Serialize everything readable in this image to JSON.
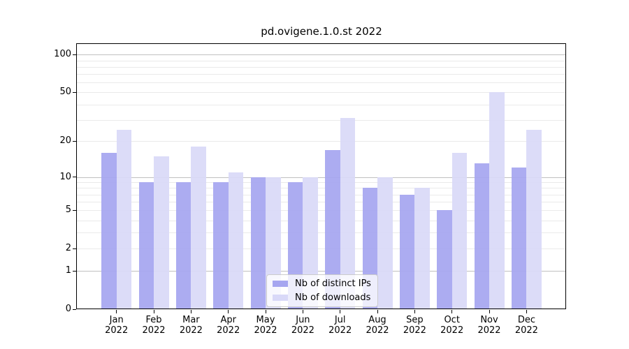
{
  "chart_data": {
    "type": "bar",
    "title": "pd.ovigene.1.0.st 2022",
    "x_months": [
      "Jan",
      "Feb",
      "Mar",
      "Apr",
      "May",
      "Jun",
      "Jul",
      "Aug",
      "Sep",
      "Oct",
      "Nov",
      "Dec"
    ],
    "x_year": "2022",
    "categories": [
      "Jan 2022",
      "Feb 2022",
      "Mar 2022",
      "Apr 2022",
      "May 2022",
      "Jun 2022",
      "Jul 2022",
      "Aug 2022",
      "Sep 2022",
      "Oct 2022",
      "Nov 2022",
      "Dec 2022"
    ],
    "series": [
      {
        "name": "Nb of distinct IPs",
        "color": "#a6a6f0",
        "values": [
          16,
          9,
          9,
          9,
          10,
          9,
          17,
          8,
          7,
          5,
          13,
          12
        ]
      },
      {
        "name": "Nb of downloads",
        "color": "#d9d9f8",
        "values": [
          25,
          15,
          18,
          11,
          10,
          10,
          31,
          10,
          8,
          16,
          50,
          25
        ]
      }
    ],
    "y_scale": "log10(value+1)",
    "y_ticks": [
      0,
      1,
      2,
      5,
      10,
      20,
      50,
      100
    ],
    "y_lim": [
      0,
      130
    ],
    "grid": true,
    "legend_position": "inside-bottom-center"
  },
  "colors": {
    "background": "#ffffff",
    "axis": "#000000",
    "major_gridline": "#c0c0c0",
    "minor_gridline": "#eaeaea",
    "legend_border": "#cccccc"
  }
}
